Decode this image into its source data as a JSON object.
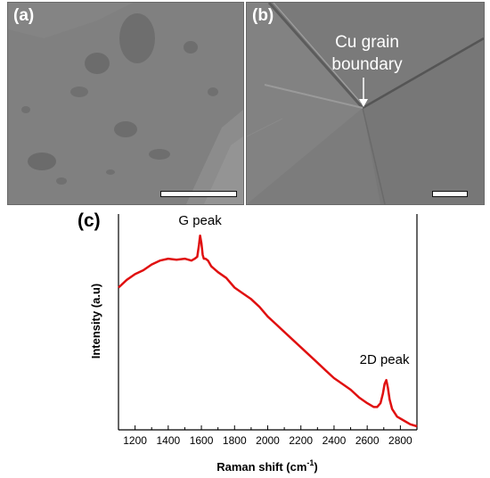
{
  "panels": {
    "a": {
      "label": "(a)"
    },
    "b": {
      "label": "(b)",
      "annotation_line1": "Cu grain",
      "annotation_line2": "boundary"
    },
    "c": {
      "label": "(c)"
    }
  },
  "colors": {
    "line": "#e01010",
    "sem_bg": "#7e7e7e"
  },
  "chart_data": {
    "type": "line",
    "title": "",
    "xlabel": "Raman shift (cm-1)",
    "xlabel_main": "Raman shift (cm",
    "xlabel_sup": "-1",
    "xlabel_close": ")",
    "ylabel": "Intensity (a.u)",
    "xlim": [
      1100,
      2900
    ],
    "ylim": [
      0,
      1
    ],
    "xticks": [
      1200,
      1400,
      1600,
      1800,
      2000,
      2200,
      2400,
      2600,
      2800
    ],
    "yticks_shown": false,
    "grid": false,
    "series": [
      {
        "x": [
          1100,
          1150,
          1200,
          1250,
          1300,
          1350,
          1400,
          1450,
          1500,
          1540,
          1560,
          1575,
          1585,
          1592,
          1600,
          1608,
          1615,
          1625,
          1640,
          1660,
          1700,
          1750,
          1800,
          1850,
          1900,
          1950,
          2000,
          2050,
          2100,
          2150,
          2200,
          2250,
          2300,
          2350,
          2400,
          2450,
          2500,
          2550,
          2600,
          2640,
          2660,
          2680,
          2695,
          2705,
          2715,
          2725,
          2735,
          2750,
          2780,
          2820,
          2860,
          2900
        ],
        "y": [
          0.72,
          0.76,
          0.79,
          0.81,
          0.84,
          0.86,
          0.87,
          0.865,
          0.87,
          0.86,
          0.87,
          0.88,
          0.94,
          0.99,
          0.95,
          0.89,
          0.87,
          0.87,
          0.86,
          0.83,
          0.8,
          0.77,
          0.72,
          0.69,
          0.66,
          0.62,
          0.57,
          0.53,
          0.49,
          0.45,
          0.41,
          0.37,
          0.33,
          0.29,
          0.25,
          0.22,
          0.19,
          0.15,
          0.12,
          0.1,
          0.1,
          0.12,
          0.17,
          0.22,
          0.24,
          0.2,
          0.14,
          0.09,
          0.05,
          0.03,
          0.01,
          0.0
        ]
      }
    ],
    "annotations": [
      {
        "text": "G peak",
        "x": 1592
      },
      {
        "text": "2D peak",
        "x": 2715
      }
    ]
  }
}
